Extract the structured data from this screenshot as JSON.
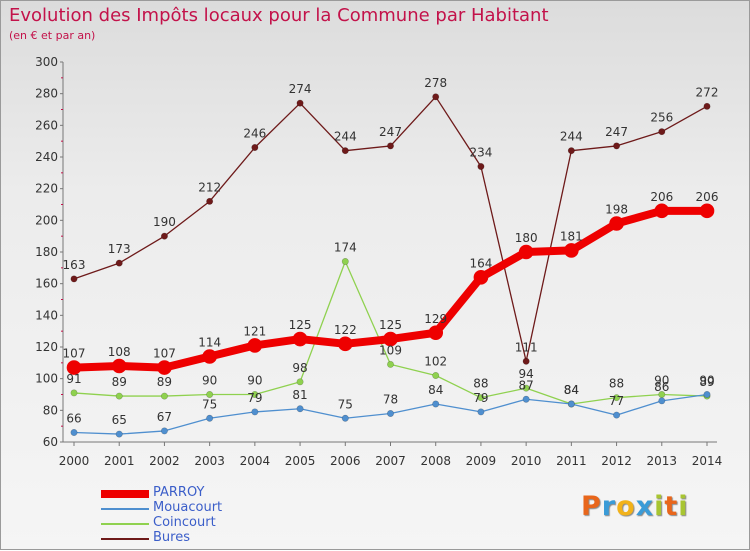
{
  "chart_data": {
    "type": "line",
    "title": "Evolution des Impôts locaux pour la Commune par Habitant",
    "subtitle": "(en € et par an)",
    "x": [
      "2000",
      "2001",
      "2002",
      "2003",
      "2004",
      "2005",
      "2006",
      "2007",
      "2008",
      "2009",
      "2010",
      "2011",
      "2012",
      "2013",
      "2014"
    ],
    "yticks": [
      "60",
      "80",
      "100",
      "120",
      "140",
      "160",
      "180",
      "200",
      "220",
      "240",
      "260",
      "280",
      "300"
    ],
    "ylim": [
      60,
      300
    ],
    "grid": false,
    "legend_position": "bottom-left",
    "series": [
      {
        "name": "PARROY",
        "color": "#ee0000",
        "values": [
          107,
          108,
          107,
          114,
          121,
          125,
          122,
          125,
          129,
          164,
          180,
          181,
          198,
          206,
          206
        ]
      },
      {
        "name": "Mouacourt",
        "color": "#4f8fcf",
        "values": [
          66,
          65,
          67,
          75,
          79,
          81,
          75,
          78,
          84,
          79,
          87,
          84,
          77,
          86,
          90
        ]
      },
      {
        "name": "Coincourt",
        "color": "#8fd14f",
        "values": [
          91,
          89,
          89,
          90,
          90,
          98,
          174,
          109,
          102,
          88,
          94,
          84,
          88,
          90,
          89
        ]
      },
      {
        "name": "Bures",
        "color": "#6e1a1a",
        "values": [
          163,
          173,
          190,
          212,
          246,
          274,
          244,
          247,
          278,
          234,
          111,
          244,
          247,
          256,
          272
        ]
      }
    ],
    "value_labels": {
      "PARROY": [
        "107",
        "108",
        "107",
        "114",
        "121",
        "125",
        "122",
        "125",
        "129",
        "164",
        "180",
        "181",
        "198",
        "206",
        "206"
      ],
      "Mouacourt": [
        "66",
        "65",
        "67",
        "75",
        "79",
        "81",
        "75",
        "78",
        "84",
        "79",
        "87",
        "84",
        "77",
        "86",
        "90"
      ],
      "Coincourt": [
        "91",
        "89",
        "89",
        "90",
        "90",
        "98",
        "174",
        "109",
        "102",
        "88",
        "94",
        "84",
        "88",
        "90",
        "89"
      ],
      "Bures": [
        "163",
        "173",
        "190",
        "212",
        "246",
        "274",
        "244",
        "247",
        "278",
        "234",
        "111",
        "244",
        "247",
        "256",
        "272"
      ]
    }
  },
  "logo": {
    "text": "Proxiti"
  }
}
